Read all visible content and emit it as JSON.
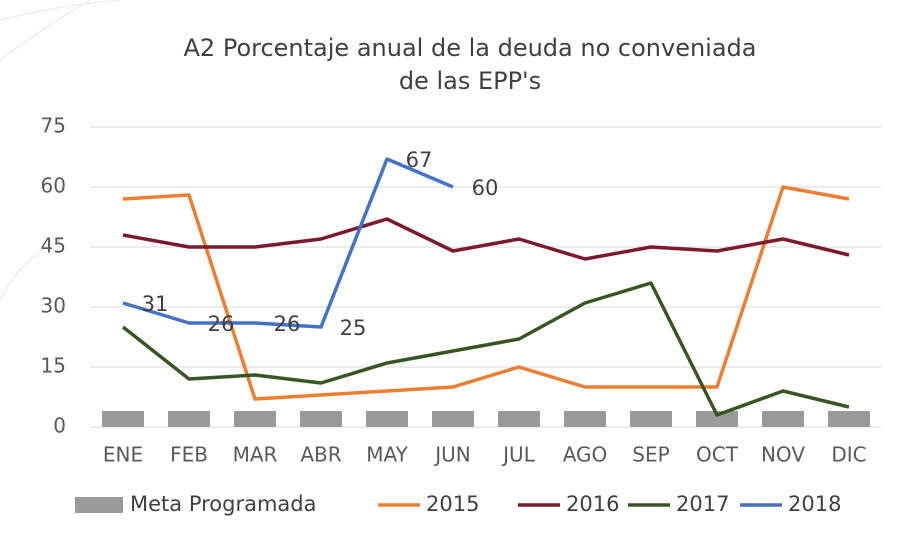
{
  "chart_data": {
    "type": "line",
    "title": [
      "A2 Porcentaje anual de la deuda no conveniada",
      "de las EPP's"
    ],
    "categories": [
      "ENE",
      "FEB",
      "MAR",
      "ABR",
      "MAY",
      "JUN",
      "JUL",
      "AGO",
      "SEP",
      "OCT",
      "NOV",
      "DIC"
    ],
    "series": [
      {
        "name": "Meta Programada",
        "type": "bar",
        "color": "#9a9a9a",
        "values": [
          4,
          4,
          4,
          4,
          4,
          4,
          4,
          4,
          4,
          4,
          4,
          4
        ]
      },
      {
        "name": "2015",
        "type": "line",
        "color": "#ed7d31",
        "values": [
          57,
          58,
          7,
          8,
          9,
          10,
          15,
          10,
          10,
          10,
          60,
          57
        ]
      },
      {
        "name": "2016",
        "type": "line",
        "color": "#7b1a2c",
        "values": [
          48,
          45,
          45,
          47,
          52,
          44,
          47,
          42,
          45,
          44,
          47,
          43
        ]
      },
      {
        "name": "2017",
        "type": "line",
        "color": "#375623",
        "values": [
          25,
          12,
          13,
          11,
          16,
          19,
          22,
          31,
          36,
          3,
          9,
          5
        ]
      },
      {
        "name": "2018",
        "type": "line",
        "color": "#4472c4",
        "data_labels": true,
        "values": [
          31,
          26,
          26,
          25,
          67,
          60,
          null,
          null,
          null,
          null,
          null,
          null
        ]
      }
    ],
    "ylim": [
      0,
      75
    ],
    "yticks": [
      0,
      15,
      30,
      45,
      60,
      75
    ],
    "grid": true,
    "legend": "bottom"
  }
}
